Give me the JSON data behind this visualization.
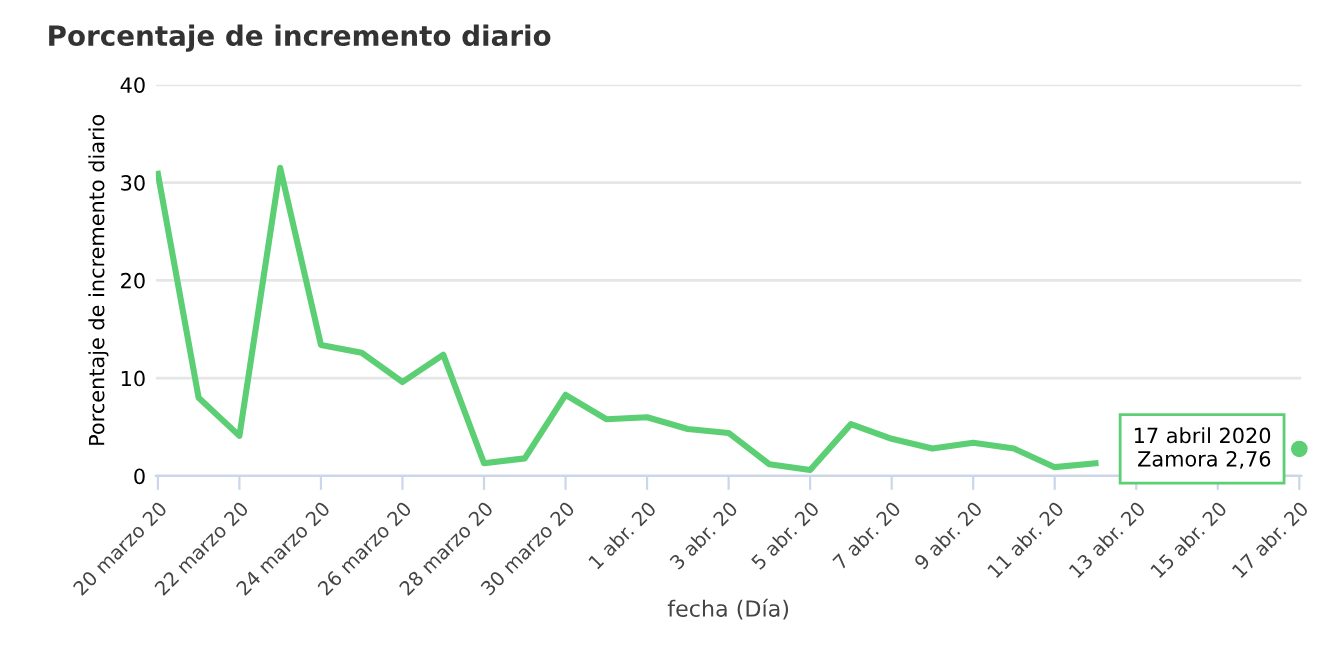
{
  "chart_data": {
    "type": "line",
    "title": "Porcentaje de incremento diario",
    "xlabel": "fecha (Día)",
    "ylabel": "Porcentaje de incremento diario",
    "categories": [
      "20 marzo 20",
      null,
      "22 marzo 20",
      null,
      "24 marzo 20",
      null,
      "26 marzo 20",
      null,
      "28 marzo 20",
      null,
      "30 marzo 20",
      null,
      "1 abr. 20",
      null,
      "3 abr. 20",
      null,
      "5 abr. 20",
      null,
      "7 abr. 20",
      null,
      "9 abr. 20",
      null,
      "11 abr. 20",
      null,
      "13 abr. 20",
      null,
      "15 abr. 20",
      null,
      "17 abr. 20"
    ],
    "series": [
      {
        "color": "#5ccf74",
        "values": [
          30.9,
          8.0,
          4.1,
          31.5,
          13.4,
          12.6,
          9.6,
          12.4,
          1.3,
          1.8,
          8.3,
          5.8,
          6.0,
          4.8,
          4.4,
          1.2,
          0.6,
          5.3,
          3.8,
          2.8,
          3.4,
          2.8,
          0.9,
          1.3,
          null,
          null,
          null,
          null,
          2.76
        ]
      }
    ],
    "ylim": [
      0,
      40
    ],
    "yticks": [
      0,
      10,
      20,
      30,
      40
    ],
    "grid": "y",
    "marker": "none",
    "line_style": "solid",
    "annotations": [
      {
        "text": "17 abril 2020\nZamora 2,76",
        "x": "17 abr. 20",
        "y": 2.76
      }
    ]
  }
}
